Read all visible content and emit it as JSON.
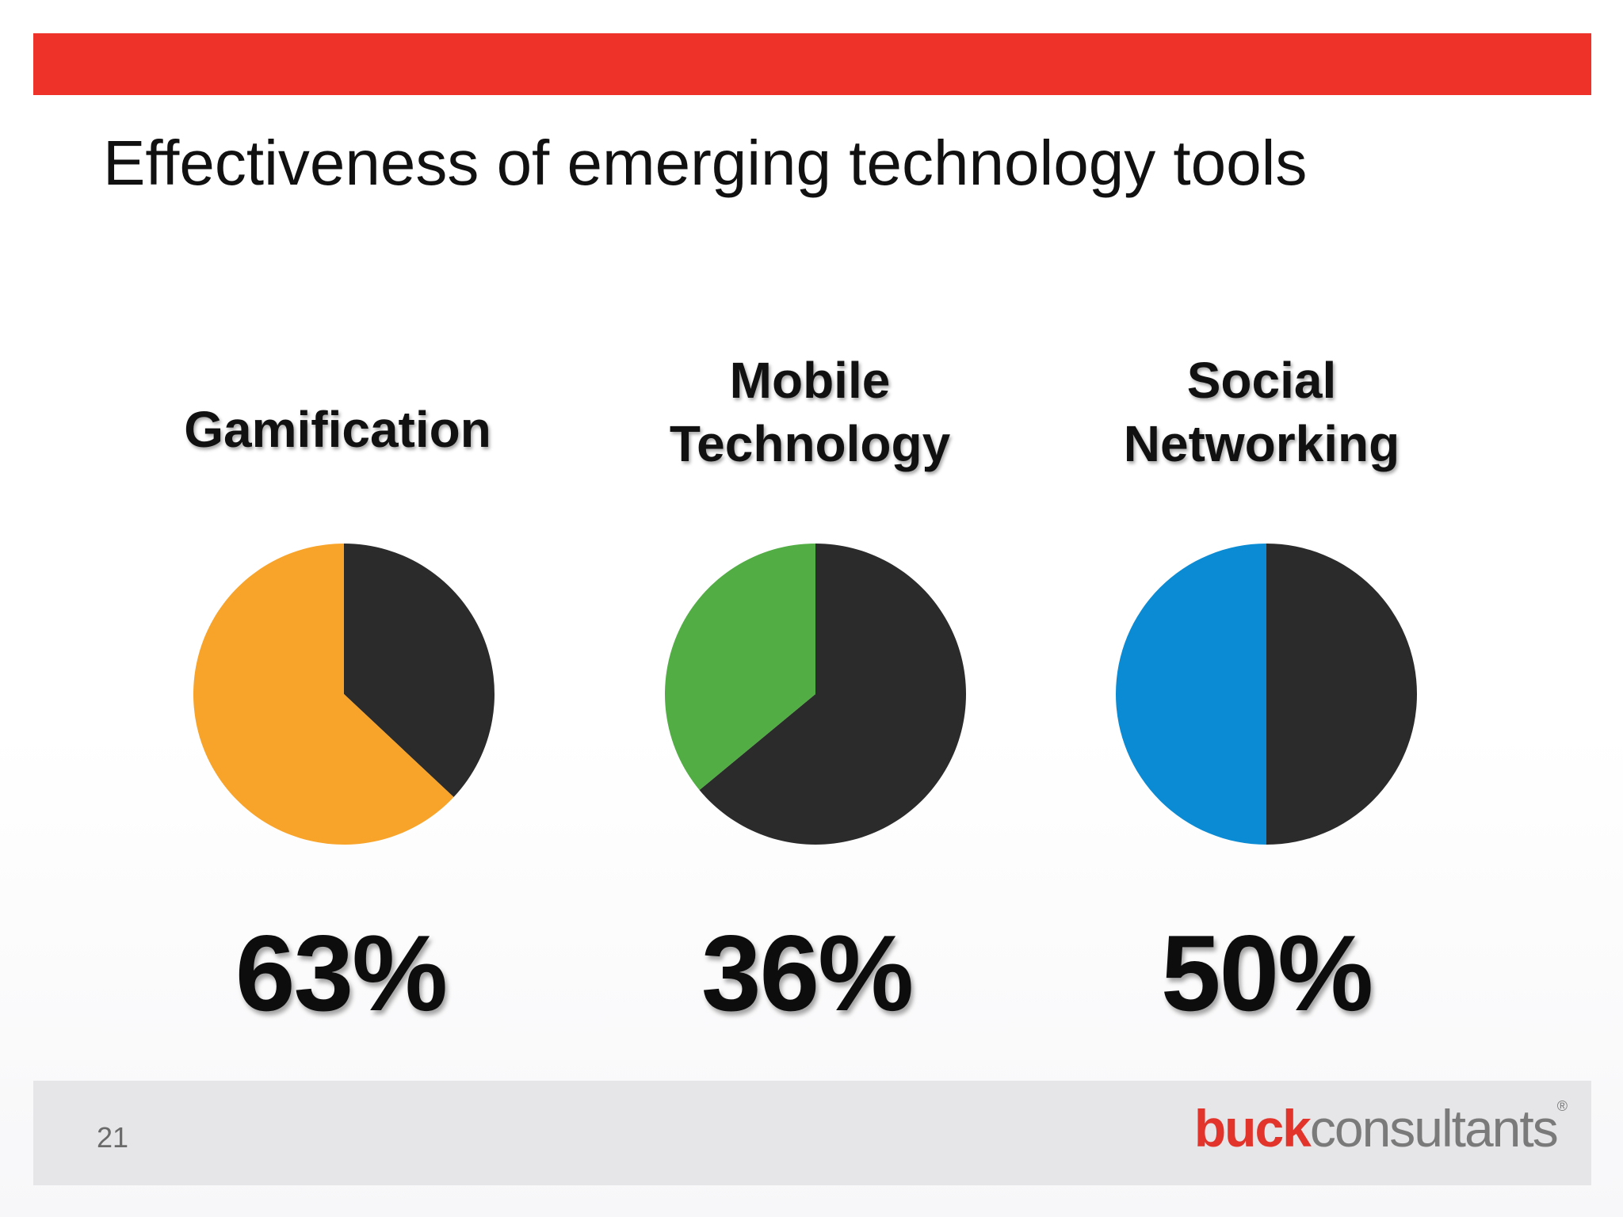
{
  "header": {
    "title": "Effectiveness of emerging technology tools"
  },
  "colors": {
    "brand_red": "#ee3129",
    "remainder": "#2b2b2b",
    "gamification": "#f8a42a",
    "mobile": "#52ad45",
    "social": "#0a8bd3"
  },
  "chart_data": [
    {
      "type": "pie",
      "label_lines": [
        "Gamification"
      ],
      "value": 63,
      "value_label": "63%",
      "slices": [
        {
          "value": 63,
          "color": "#f8a42a"
        },
        {
          "value": 37,
          "color": "#2b2b2b"
        }
      ]
    },
    {
      "type": "pie",
      "label_lines": [
        "Mobile",
        "Technology"
      ],
      "value": 36,
      "value_label": "36%",
      "slices": [
        {
          "value": 36,
          "color": "#52ad45"
        },
        {
          "value": 64,
          "color": "#2b2b2b"
        }
      ]
    },
    {
      "type": "pie",
      "label_lines": [
        "Social",
        "Networking"
      ],
      "value": 50,
      "value_label": "50%",
      "slices": [
        {
          "value": 50,
          "color": "#0a8bd3"
        },
        {
          "value": 50,
          "color": "#2b2b2b"
        }
      ]
    }
  ],
  "footer": {
    "page_number": "21",
    "logo_part1": "buck",
    "logo_part2": "consultants",
    "logo_mark": "®"
  }
}
